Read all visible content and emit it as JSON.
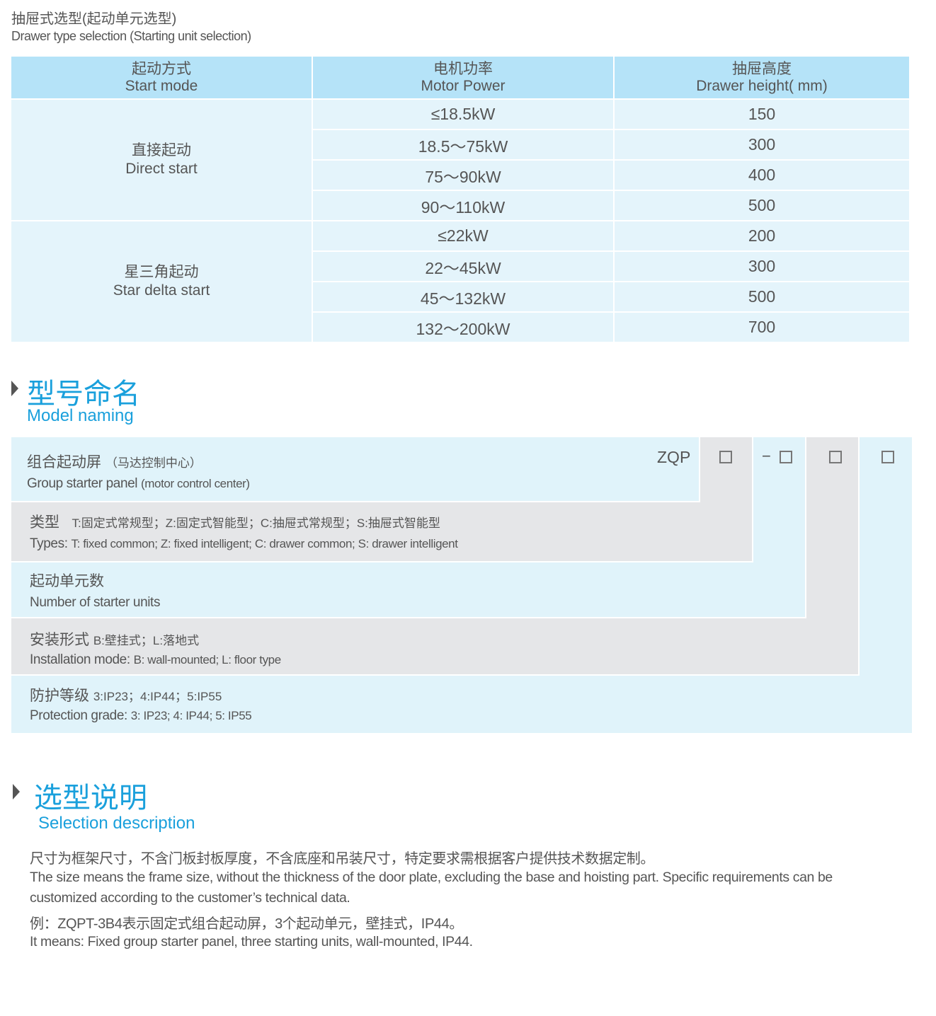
{
  "header": {
    "title_cn": "抽屉式选型(起动单元选型)",
    "title_en": "Drawer type selection (Starting unit selection)"
  },
  "table": {
    "columns": [
      {
        "cn": "起动方式",
        "en": "Start mode"
      },
      {
        "cn": "电机功率",
        "en": "Motor Power"
      },
      {
        "cn": "抽屉高度",
        "en": "Drawer height( mm)"
      }
    ],
    "groups": [
      {
        "cn": "直接起动",
        "en": "Direct start",
        "rows": [
          [
            "≤18.5kW",
            "150"
          ],
          [
            "18.5～75kW",
            "300"
          ],
          [
            "75～90kW",
            "400"
          ],
          [
            "90～110kW",
            "500"
          ]
        ]
      },
      {
        "cn": "星三角起动",
        "en": "Star delta start",
        "rows": [
          [
            "≤22kW",
            "200"
          ],
          [
            "22～45kW",
            "300"
          ],
          [
            "45～132kW",
            "500"
          ],
          [
            "132～200kW",
            "700"
          ]
        ]
      }
    ]
  },
  "model_naming": {
    "title_cn": "型号命名",
    "title_en": "Model naming",
    "prefix": "ZQP",
    "dash": "−",
    "rows": [
      {
        "cn": "组合起动屏",
        "cn_note": "（马达控制中心）",
        "en": "Group starter panel",
        "en_note": "(motor control center)"
      },
      {
        "cn": "类型",
        "cn_note": "T:固定式常规型；Z:固定式智能型；C:抽屉式常规型；S:抽屉式智能型",
        "en": "Types:",
        "en_note": "T: fixed common; Z: fixed intelligent; C: drawer common; S: drawer intelligent"
      },
      {
        "cn": "起动单元数",
        "cn_note": "",
        "en": "Number  of  starter units",
        "en_note": ""
      },
      {
        "cn": "安装形式",
        "cn_note": "B:壁挂式；L:落地式",
        "en": "Installation mode:",
        "en_note": "B: wall-mounted; L: floor type"
      },
      {
        "cn": "防护等级",
        "cn_note": "3:IP23；4:IP44；5:IP55",
        "en": "Protection grade:",
        "en_note": "3: IP23; 4: IP44; 5: IP55"
      }
    ],
    "colors": {
      "blue": "#e0f3fa",
      "gray": "#e5e6e8",
      "accent": "#1aa0dc"
    }
  },
  "selection": {
    "title_cn": "选型说明",
    "title_en": "Selection description",
    "lines": [
      "尺寸为框架尺寸，不含门板封板厚度，不含底座和吊装尺寸，特定要求需根据客户提供技术数据定制。",
      "The size means the frame size, without the thickness of the door plate, excluding the base and hoisting part. Specific requirements can be",
      "customized according to the customer’s technical data.",
      "例：ZQPT-3B4表示固定式组合起动屏，3个起动单元，壁挂式，IP44。",
      "It means: Fixed group starter panel, three starting units, wall-mounted, IP44."
    ]
  }
}
